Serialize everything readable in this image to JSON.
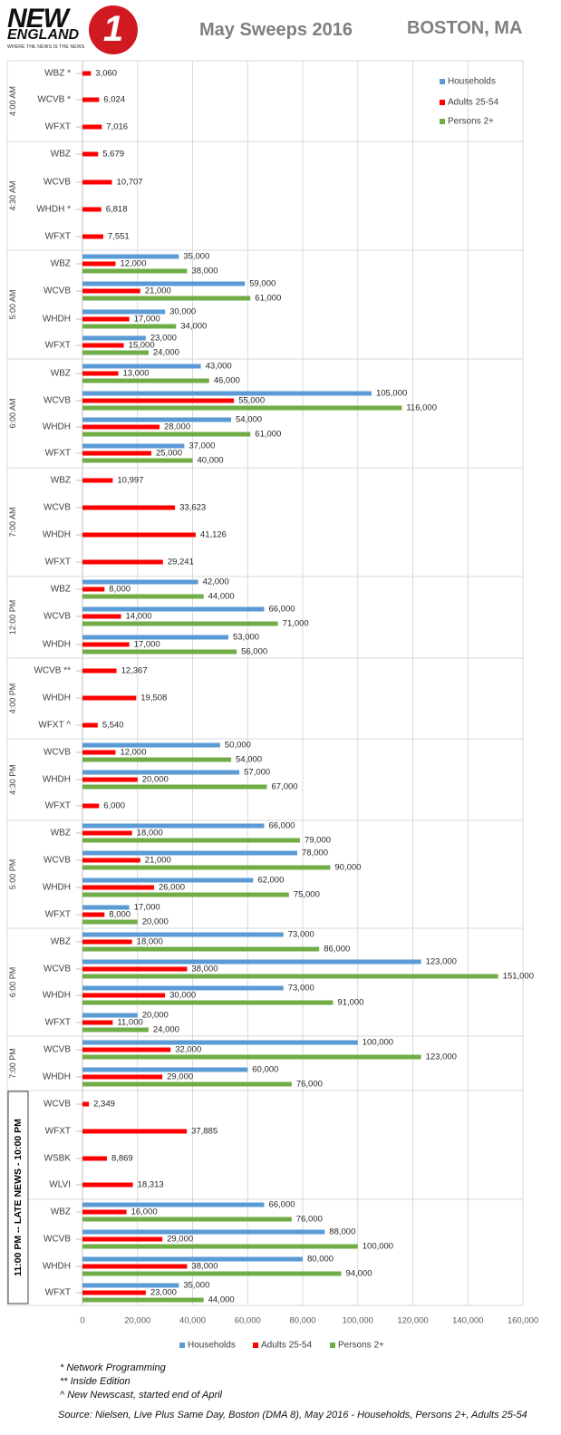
{
  "header": {
    "logo_new": "NEW",
    "logo_england": "ENGLAND",
    "logo_number": "1",
    "logo_tagline": "WHERE THE NEWS IS THE NEWS",
    "title": "May Sweeps 2016",
    "location": "BOSTON, MA"
  },
  "colors": {
    "households": "#5b9bd5",
    "adults": "#ff0000",
    "persons": "#70ad47",
    "grid": "#d9d9d9",
    "axis_text": "#595959"
  },
  "chart_data": {
    "type": "bar",
    "orientation": "horizontal",
    "title": "May Sweeps 2016",
    "xlim": [
      0,
      160000
    ],
    "x_ticks": [
      "0",
      "20,000",
      "40,000",
      "60,000",
      "80,000",
      "100,000",
      "120,000",
      "140,000",
      "160,000"
    ],
    "legend": [
      "Households",
      "Adults 25-54",
      "Persons 2+"
    ],
    "groups": [
      {
        "time": "4:00 AM",
        "rows": [
          {
            "station": "WBZ *",
            "hh": null,
            "a": 3060,
            "p": null
          },
          {
            "station": "WCVB *",
            "hh": null,
            "a": 6024,
            "p": null
          },
          {
            "station": "WFXT",
            "hh": null,
            "a": 7016,
            "p": null
          }
        ]
      },
      {
        "time": "4:30 AM",
        "rows": [
          {
            "station": "WBZ",
            "hh": null,
            "a": 5679,
            "p": null
          },
          {
            "station": "WCVB",
            "hh": null,
            "a": 10707,
            "p": null
          },
          {
            "station": "WHDH *",
            "hh": null,
            "a": 6818,
            "p": null
          },
          {
            "station": "WFXT",
            "hh": null,
            "a": 7551,
            "p": null
          }
        ]
      },
      {
        "time": "5:00 AM",
        "rows": [
          {
            "station": "WBZ",
            "hh": 35000,
            "a": 12000,
            "p": 38000
          },
          {
            "station": "WCVB",
            "hh": 59000,
            "a": 21000,
            "p": 61000
          },
          {
            "station": "WHDH",
            "hh": 30000,
            "a": 17000,
            "p": 34000
          },
          {
            "station": "WFXT",
            "hh": 23000,
            "a": 15000,
            "p": 24000
          }
        ]
      },
      {
        "time": "6:00 AM",
        "rows": [
          {
            "station": "WBZ",
            "hh": 43000,
            "a": 13000,
            "p": 46000
          },
          {
            "station": "WCVB",
            "hh": 105000,
            "a": 55000,
            "p": 116000
          },
          {
            "station": "WHDH",
            "hh": 54000,
            "a": 28000,
            "p": 61000
          },
          {
            "station": "WFXT",
            "hh": 37000,
            "a": 25000,
            "p": 40000
          }
        ]
      },
      {
        "time": "7:00 AM",
        "rows": [
          {
            "station": "WBZ",
            "hh": null,
            "a": 10997,
            "p": null
          },
          {
            "station": "WCVB",
            "hh": null,
            "a": 33623,
            "p": null
          },
          {
            "station": "WHDH",
            "hh": null,
            "a": 41126,
            "p": null
          },
          {
            "station": "WFXT",
            "hh": null,
            "a": 29241,
            "p": null
          }
        ]
      },
      {
        "time": "12:00 PM",
        "rows": [
          {
            "station": "WBZ",
            "hh": 42000,
            "a": 8000,
            "p": 44000
          },
          {
            "station": "WCVB",
            "hh": 66000,
            "a": 14000,
            "p": 71000
          },
          {
            "station": "WHDH",
            "hh": 53000,
            "a": 17000,
            "p": 56000
          }
        ]
      },
      {
        "time": "4:00 PM",
        "rows": [
          {
            "station": "WCVB **",
            "hh": null,
            "a": 12367,
            "p": null
          },
          {
            "station": "WHDH",
            "hh": null,
            "a": 19508,
            "p": null
          },
          {
            "station": "WFXT ^",
            "hh": null,
            "a": 5540,
            "p": null
          }
        ]
      },
      {
        "time": "4:30 PM",
        "rows": [
          {
            "station": "WCVB",
            "hh": 50000,
            "a": 12000,
            "p": 54000
          },
          {
            "station": "WHDH",
            "hh": 57000,
            "a": 20000,
            "p": 67000
          },
          {
            "station": "WFXT",
            "hh": null,
            "a": 6000,
            "p": null
          }
        ]
      },
      {
        "time": "5:00 PM",
        "rows": [
          {
            "station": "WBZ",
            "hh": 66000,
            "a": 18000,
            "p": 79000
          },
          {
            "station": "WCVB",
            "hh": 78000,
            "a": 21000,
            "p": 90000
          },
          {
            "station": "WHDH",
            "hh": 62000,
            "a": 26000,
            "p": 75000
          },
          {
            "station": "WFXT",
            "hh": 17000,
            "a": 8000,
            "p": 20000
          }
        ]
      },
      {
        "time": "6:00 PM",
        "rows": [
          {
            "station": "WBZ",
            "hh": 73000,
            "a": 18000,
            "p": 86000
          },
          {
            "station": "WCVB",
            "hh": 123000,
            "a": 38000,
            "p": 151000
          },
          {
            "station": "WHDH",
            "hh": 73000,
            "a": 30000,
            "p": 91000
          },
          {
            "station": "WFXT",
            "hh": 20000,
            "a": 11000,
            "p": 24000
          }
        ]
      },
      {
        "time": "7:00 PM",
        "rows": [
          {
            "station": "WCVB",
            "hh": 100000,
            "a": 32000,
            "p": 123000
          },
          {
            "station": "WHDH",
            "hh": 60000,
            "a": 29000,
            "p": 76000
          }
        ]
      },
      {
        "time": "10:00 PM",
        "rows": [
          {
            "station": "WCVB",
            "hh": null,
            "a": 2349,
            "p": null
          },
          {
            "station": "WFXT",
            "hh": null,
            "a": 37885,
            "p": null
          },
          {
            "station": "WSBK",
            "hh": null,
            "a": 8869,
            "p": null
          },
          {
            "station": "WLVI",
            "hh": null,
            "a": 18313,
            "p": null
          }
        ]
      },
      {
        "time": "11:00 PM",
        "rows": [
          {
            "station": "WBZ",
            "hh": 66000,
            "a": 16000,
            "p": 76000
          },
          {
            "station": "WCVB",
            "hh": 88000,
            "a": 29000,
            "p": 100000
          },
          {
            "station": "WHDH",
            "hh": 80000,
            "a": 38000,
            "p": 94000
          },
          {
            "station": "WFXT",
            "hh": 35000,
            "a": 23000,
            "p": 44000
          }
        ]
      }
    ],
    "late_news_label": "11:00 PM  -- LATE NEWS  -  10:00 PM"
  },
  "footnotes": [
    "* Network Programming",
    "** Inside Edition",
    "^ New Newscast, started end of April"
  ],
  "source": "Source: Nielsen, Live Plus Same Day, Boston (DMA 8), May 2016 - Households, Persons 2+, Adults 25-54"
}
